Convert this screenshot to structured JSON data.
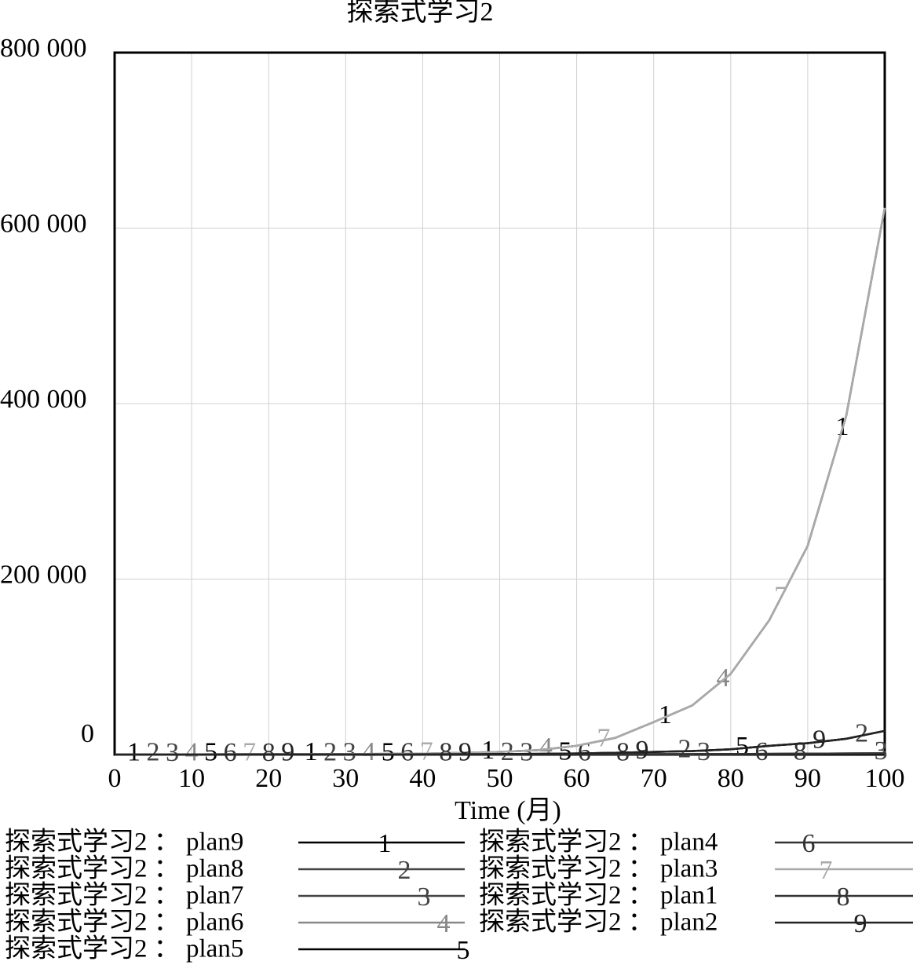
{
  "chart_data": {
    "type": "line",
    "title": "探索式学习2",
    "x_label": "Time (月)",
    "x": [
      0,
      5,
      10,
      15,
      20,
      25,
      30,
      35,
      40,
      45,
      50,
      55,
      60,
      65,
      70,
      75,
      80,
      85,
      90,
      95,
      100
    ],
    "xlim": [
      0,
      100
    ],
    "xticks": [
      0,
      10,
      20,
      30,
      40,
      50,
      60,
      70,
      80,
      90,
      100
    ],
    "ylim": [
      0,
      800000
    ],
    "yticks": [
      0,
      {
        "value": 200000,
        "label": "200 000"
      },
      {
        "value": 400000,
        "label": "400 000"
      },
      {
        "value": 600000,
        "label": "600 000"
      },
      {
        "value": 800000,
        "label": "800 000"
      }
    ],
    "grid": true,
    "series": [
      {
        "name": "探索式学习2 ： plan9",
        "marker": "1",
        "color": "#000000",
        "values": [
          100,
          150,
          200,
          300,
          400,
          500,
          600,
          800,
          1000,
          2000,
          3000,
          5000,
          10000,
          19000,
          37000,
          56000,
          92000,
          153000,
          238000,
          386000,
          623000
        ]
      },
      {
        "name": "探索式学习2 ： plan8",
        "marker": "2",
        "color": "#444444",
        "values": [
          50,
          60,
          80,
          100,
          120,
          150,
          200,
          250,
          300,
          400,
          600,
          800,
          1200,
          2000,
          3000,
          4000,
          6000,
          10000,
          13000,
          18000,
          27000
        ]
      },
      {
        "name": "探索式学习2 ： plan7",
        "marker": "3",
        "color": "#444444",
        "values": [
          0,
          10,
          20,
          30,
          40,
          50,
          60,
          80,
          100,
          120,
          150,
          200,
          250,
          300,
          400,
          500,
          600,
          800,
          1000,
          1200,
          1500
        ]
      },
      {
        "name": "探索式学习2 ： plan6",
        "marker": "4",
        "color": "#888888",
        "values": [
          100,
          150,
          200,
          300,
          400,
          500,
          600,
          800,
          1000,
          2000,
          3000,
          5000,
          10000,
          19000,
          37000,
          56000,
          92000,
          153000,
          238000,
          386000,
          623000
        ]
      },
      {
        "name": "探索式学习2 ： plan5",
        "marker": "5",
        "color": "#000000",
        "values": [
          50,
          60,
          80,
          100,
          120,
          150,
          200,
          250,
          300,
          400,
          600,
          800,
          1200,
          2000,
          3000,
          4000,
          6000,
          10000,
          13000,
          18000,
          27000
        ]
      },
      {
        "name": "探索式学习2 ： plan4",
        "marker": "6",
        "color": "#333333",
        "values": [
          0,
          10,
          20,
          30,
          40,
          50,
          60,
          80,
          100,
          120,
          150,
          200,
          250,
          300,
          400,
          500,
          600,
          800,
          1000,
          1200,
          1500
        ]
      },
      {
        "name": "探索式学习2 ： plan3",
        "marker": "7",
        "color": "#aaaaaa",
        "values": [
          100,
          150,
          200,
          300,
          400,
          500,
          600,
          800,
          1000,
          2000,
          3000,
          5000,
          10000,
          19000,
          37000,
          56000,
          92000,
          153000,
          238000,
          386000,
          623000
        ]
      },
      {
        "name": "探索式学习2 ： plan1",
        "marker": "8",
        "color": "#333333",
        "values": [
          0,
          10,
          20,
          30,
          40,
          50,
          60,
          80,
          100,
          120,
          150,
          200,
          250,
          300,
          400,
          500,
          600,
          800,
          1000,
          1200,
          1500
        ]
      },
      {
        "name": "探索式学习2 ： plan2",
        "marker": "9",
        "color": "#222222",
        "values": [
          50,
          60,
          80,
          100,
          120,
          150,
          200,
          250,
          300,
          400,
          600,
          800,
          1200,
          2000,
          3000,
          4000,
          6000,
          10000,
          13000,
          18000,
          27000
        ]
      }
    ]
  }
}
